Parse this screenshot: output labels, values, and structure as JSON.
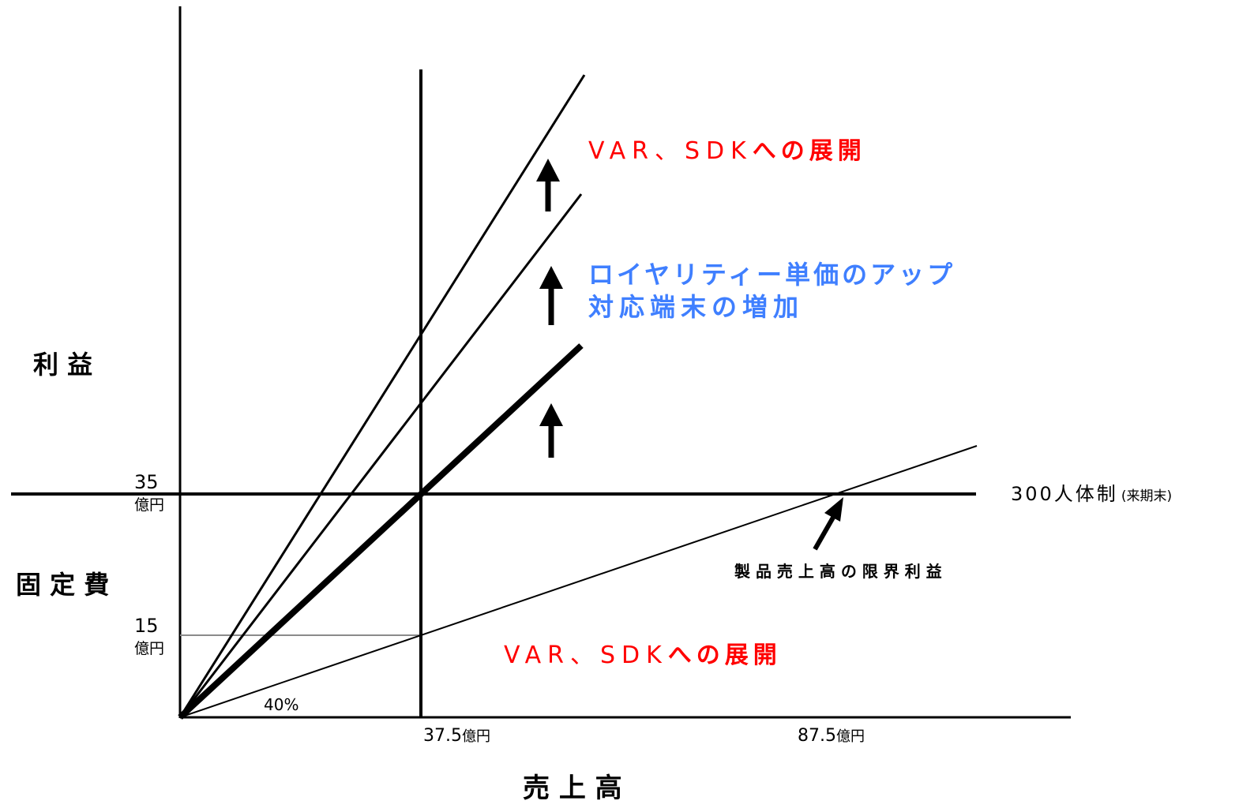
{
  "axes": {
    "x_title": "売 上 高",
    "y_title_top": "利 益",
    "y_title_bottom": "固 定 費"
  },
  "y_ticks": [
    {
      "value": "35",
      "unit": "億円"
    },
    {
      "value": "15",
      "unit": "億円"
    }
  ],
  "x_ticks": [
    {
      "value": "37.5",
      "unit": "億円"
    },
    {
      "value": "87.5",
      "unit": "億円"
    }
  ],
  "fixed_cost_line": {
    "label_main": "300人体制",
    "label_sub": "(来期末)"
  },
  "slope_label": "40%",
  "marginal_profit_label": "製 品 売 上 高 の 限 界 利 益",
  "annotations": {
    "top_red_prefix": "VAR、SDK",
    "top_red_suffix": "への展開",
    "blue_line1": "ロイヤリティー単価のアップ",
    "blue_line2": "対応端末の増加",
    "bottom_red_prefix": "VAR、SDK",
    "bottom_red_suffix": "への展開"
  },
  "colors": {
    "red": "#ff0000",
    "blue": "#3f7fff",
    "gray_line": "#8a8a8a"
  }
}
